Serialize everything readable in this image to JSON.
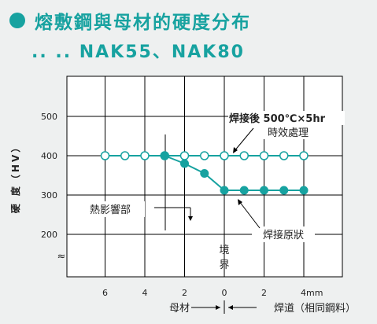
{
  "title": "熔敷鋼與母材的硬度分布",
  "subtitle": ".. .. NAK55、NAK80",
  "chart_data": {
    "type": "line",
    "ylabel": "硬 度（HV）",
    "ylim": [
      150,
      500
    ],
    "y_ticks": [
      200,
      300,
      400,
      500
    ],
    "x_ticks": [
      "6",
      "4",
      "2",
      "0",
      "2",
      "4mm"
    ],
    "axis_break": "≈",
    "grid": true,
    "series": [
      {
        "name": "熔接後 500℃×5hr 時效處理",
        "marker": "open-circle",
        "x": [
          -6,
          -5,
          -4,
          -3,
          -2,
          -1,
          0,
          1,
          2,
          3,
          4
        ],
        "values": [
          400,
          400,
          400,
          400,
          400,
          400,
          400,
          400,
          400,
          400,
          400
        ]
      },
      {
        "name": "焊接原狀",
        "marker": "filled-circle",
        "x": [
          -3,
          -2,
          -1,
          0,
          1,
          2,
          3,
          4
        ],
        "values": [
          400,
          380,
          355,
          312,
          312,
          312,
          312,
          312
        ]
      }
    ],
    "annotations": {
      "aged_line1": "焊接後 500℃×5hr",
      "aged_line2": "時效處理",
      "as_welded": "焊接原狀",
      "haz": "熱影響部",
      "boundary_1": "境",
      "boundary_2": "界",
      "base_metal": "母材",
      "weld_metal": "焊道（相同鋼料）"
    },
    "colors": {
      "accent": "#17a2a0",
      "grid": "#000000"
    }
  }
}
